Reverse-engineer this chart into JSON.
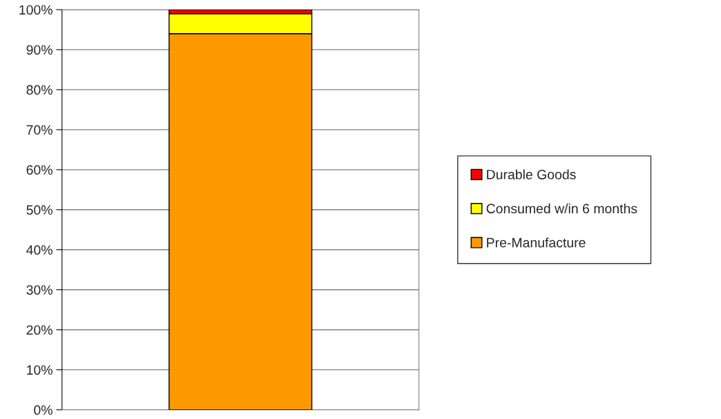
{
  "chart_data": {
    "type": "bar",
    "stacked": true,
    "categories": [
      null
    ],
    "series": [
      {
        "name": "Pre-Manufacture",
        "color": "#ff9900",
        "values": [
          94
        ]
      },
      {
        "name": "Consumed w/in 6 months",
        "color": "#ffff00",
        "values": [
          5
        ]
      },
      {
        "name": "Durable Goods",
        "color": "#ff0000",
        "values": [
          1
        ]
      }
    ],
    "ylim": [
      0,
      100
    ],
    "yticks": [
      {
        "value": 0,
        "label": "0%"
      },
      {
        "value": 10,
        "label": "10%"
      },
      {
        "value": 20,
        "label": "20%"
      },
      {
        "value": 30,
        "label": "30%"
      },
      {
        "value": 40,
        "label": "40%"
      },
      {
        "value": 50,
        "label": "50%"
      },
      {
        "value": 60,
        "label": "60%"
      },
      {
        "value": 70,
        "label": "70%"
      },
      {
        "value": 80,
        "label": "80%"
      },
      {
        "value": 90,
        "label": "90%"
      },
      {
        "value": 100,
        "label": "100%"
      }
    ],
    "grid": "y",
    "legend": "right"
  }
}
